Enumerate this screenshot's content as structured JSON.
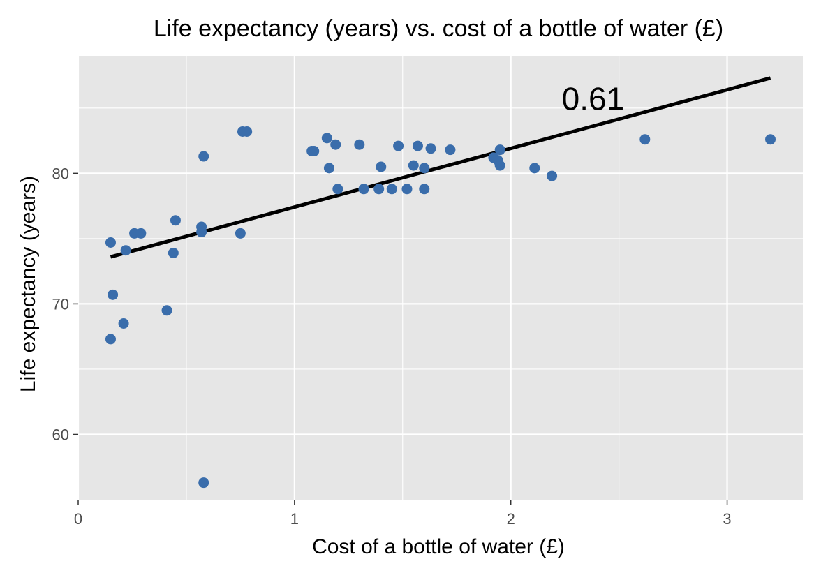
{
  "chart_data": {
    "type": "scatter",
    "title": "Life expectancy (years) vs. cost of a bottle of water (£)",
    "xlabel": "Cost of a bottle of water (£)",
    "ylabel": "Life expectancy (years)",
    "xlim": [
      0,
      3.35
    ],
    "ylim": [
      55,
      89
    ],
    "x_ticks": [
      0,
      1,
      2,
      3
    ],
    "x_minor_ticks": [
      0.5,
      1.5,
      2.5
    ],
    "y_ticks": [
      60,
      70,
      80
    ],
    "y_minor_ticks": [
      65,
      75,
      85
    ],
    "grid": true,
    "point_color": "#3a6dab",
    "background": "#e6e6e6",
    "grid_color": "#ffffff",
    "series": [
      {
        "points": [
          [
            0.15,
            74.7
          ],
          [
            0.16,
            70.7
          ],
          [
            0.15,
            67.3
          ],
          [
            0.21,
            68.5
          ],
          [
            0.22,
            74.1
          ],
          [
            0.26,
            75.4
          ],
          [
            0.29,
            75.4
          ],
          [
            0.41,
            69.5
          ],
          [
            0.44,
            73.9
          ],
          [
            0.45,
            76.4
          ],
          [
            0.57,
            75.9
          ],
          [
            0.57,
            75.5
          ],
          [
            0.58,
            81.3
          ],
          [
            0.58,
            56.3
          ],
          [
            0.75,
            75.4
          ],
          [
            0.76,
            83.2
          ],
          [
            0.78,
            83.2
          ],
          [
            1.08,
            81.7
          ],
          [
            1.09,
            81.7
          ],
          [
            1.15,
            82.7
          ],
          [
            1.16,
            80.4
          ],
          [
            1.19,
            82.2
          ],
          [
            1.2,
            78.8
          ],
          [
            1.3,
            82.2
          ],
          [
            1.32,
            78.8
          ],
          [
            1.39,
            78.8
          ],
          [
            1.4,
            80.5
          ],
          [
            1.45,
            78.8
          ],
          [
            1.48,
            82.1
          ],
          [
            1.52,
            78.8
          ],
          [
            1.55,
            80.6
          ],
          [
            1.57,
            82.1
          ],
          [
            1.6,
            80.4
          ],
          [
            1.6,
            78.8
          ],
          [
            1.63,
            81.9
          ],
          [
            1.72,
            81.8
          ],
          [
            1.92,
            81.2
          ],
          [
            1.94,
            81.0
          ],
          [
            1.95,
            81.8
          ],
          [
            1.95,
            80.6
          ],
          [
            2.11,
            80.4
          ],
          [
            2.19,
            79.8
          ],
          [
            2.62,
            82.6
          ],
          [
            3.2,
            82.6
          ]
        ]
      }
    ],
    "trend_line": {
      "x": [
        0.15,
        3.2
      ],
      "y": [
        73.6,
        87.3
      ],
      "color": "#000000"
    },
    "annotation": {
      "text": "0.61",
      "x": 2.38,
      "y": 85.7
    }
  }
}
